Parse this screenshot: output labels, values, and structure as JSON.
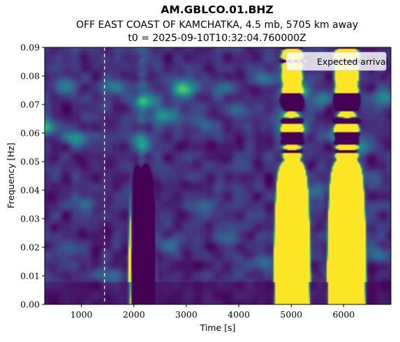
{
  "chart_data": {
    "type": "heatmap",
    "title": "AM.GBLCO.01.BHZ",
    "subtitle": "OFF EAST COAST OF KAMCHATKA, 4.5 mb, 5705 km away",
    "subtitle2": "t0 = 2025-09-10T10:32:04.760000Z",
    "xlabel": "Time [s]",
    "ylabel": "Frequency [Hz]",
    "xlim": [
      300,
      6900
    ],
    "ylim": [
      0,
      0.09
    ],
    "x_ticks": [
      1000,
      2000,
      3000,
      4000,
      5000,
      6000
    ],
    "y_ticks": [
      "0.00",
      "0.01",
      "0.02",
      "0.03",
      "0.04",
      "0.05",
      "0.06",
      "0.07",
      "0.08",
      "0.09"
    ],
    "colormap": "viridis",
    "expected_arrival": 1440,
    "legend": {
      "label": "Expected arrival",
      "placement": "top-right"
    },
    "hotspots": [
      {
        "t": 5080,
        "f": 0.0745,
        "level": 1.0
      },
      {
        "t": 5980,
        "f": 0.059,
        "level": 0.95
      },
      {
        "t": 2950,
        "f": 0.0755,
        "level": 0.85
      },
      {
        "t": 5050,
        "f": 0.0615,
        "level": 0.85
      },
      {
        "t": 320,
        "f": 0.062,
        "level": 0.65
      },
      {
        "t": 2220,
        "f": 0.071,
        "level": 0.6
      },
      {
        "t": 2600,
        "f": 0.066,
        "level": 0.55
      },
      {
        "t": 6250,
        "f": 0.055,
        "level": 0.5
      },
      {
        "t": 4900,
        "f": 0.0655,
        "level": 0.5
      },
      {
        "t": 2150,
        "f": 0.056,
        "level": 0.45
      },
      {
        "t": 900,
        "f": 0.058,
        "level": 0.45
      },
      {
        "t": 700,
        "f": 0.076,
        "level": 0.45
      },
      {
        "t": 5600,
        "f": 0.072,
        "level": 0.4
      },
      {
        "t": 6800,
        "f": 0.0725,
        "level": 0.45
      },
      {
        "t": 1650,
        "f": 0.076,
        "level": 0.35
      },
      {
        "t": 3700,
        "f": 0.0755,
        "level": 0.4
      },
      {
        "t": 4500,
        "f": 0.079,
        "level": 0.35
      },
      {
        "t": 2700,
        "f": 0.0205,
        "level": 0.35
      },
      {
        "t": 5900,
        "f": 0.012,
        "level": 0.4
      },
      {
        "t": 6650,
        "f": 0.0175,
        "level": 0.35
      },
      {
        "t": 6150,
        "f": 0.0235,
        "level": 0.3
      },
      {
        "t": 1050,
        "f": 0.0355,
        "level": 0.3
      },
      {
        "t": 800,
        "f": 0.0195,
        "level": 0.3
      },
      {
        "t": 3400,
        "f": 0.0345,
        "level": 0.3
      },
      {
        "t": 3800,
        "f": 0.0235,
        "level": 0.3
      },
      {
        "t": 4450,
        "f": 0.0145,
        "level": 0.28
      },
      {
        "t": 1500,
        "f": 0.0105,
        "level": 0.28
      },
      {
        "t": 5400,
        "f": 0.0395,
        "level": 0.3
      },
      {
        "t": 6600,
        "f": 0.0445,
        "level": 0.28
      },
      {
        "t": 4000,
        "f": 0.0675,
        "level": 0.3
      },
      {
        "t": 3300,
        "f": 0.063,
        "level": 0.3
      }
    ],
    "vertical_streaks": [
      {
        "t": 2150,
        "level": 0.42
      },
      {
        "t": 5000,
        "level": 0.55
      },
      {
        "t": 6050,
        "level": 0.25
      }
    ]
  }
}
